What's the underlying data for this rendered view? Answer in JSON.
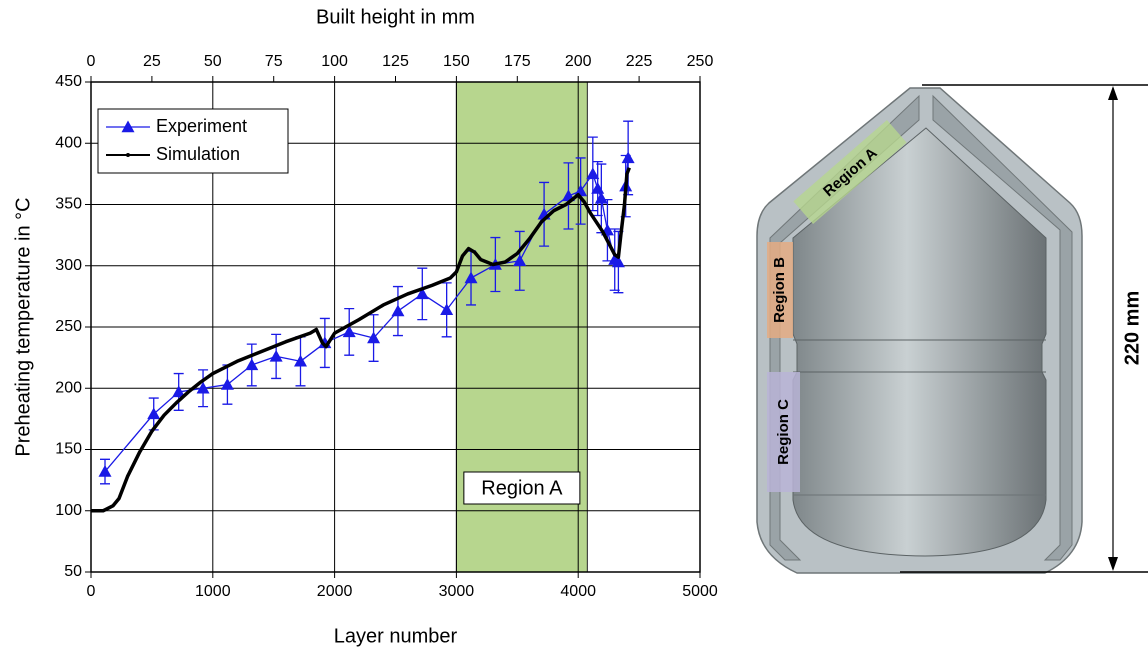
{
  "chart_data": {
    "type": "line",
    "xlabel": "Layer number",
    "ylabel": "Preheating temperature in °C",
    "x2label": "Built height in mm",
    "xlim": [
      0,
      5000
    ],
    "xticks": [
      0,
      1000,
      2000,
      3000,
      4000,
      5000
    ],
    "x2lim": [
      0,
      250
    ],
    "x2ticks": [
      0,
      25,
      50,
      75,
      100,
      125,
      150,
      175,
      200,
      225,
      250
    ],
    "ylim": [
      50,
      450
    ],
    "yticks": [
      50,
      100,
      150,
      200,
      250,
      300,
      350,
      400,
      450
    ],
    "grid": true,
    "legend": "upper left",
    "shaded_region": {
      "x": [
        3000,
        4075
      ],
      "label": "Region A",
      "color": "#b7d68e"
    },
    "series": [
      {
        "name": "Experiment",
        "color": "#1a1ae6",
        "marker": "triangle",
        "x": [
          115,
          515,
          720,
          920,
          1120,
          1320,
          1520,
          1720,
          1920,
          2120,
          2320,
          2520,
          2720,
          2920,
          3120,
          3320,
          3520,
          3720,
          3920,
          4020,
          4120,
          4160,
          4190,
          4240,
          4300,
          4330,
          4390,
          4410
        ],
        "values": [
          132,
          179,
          197,
          200,
          203,
          219,
          226,
          222,
          237,
          246,
          241,
          263,
          277,
          264,
          290,
          301,
          304,
          342,
          357,
          361,
          375,
          363,
          355,
          329,
          305,
          303,
          365,
          388
        ],
        "errors": [
          10,
          13,
          15,
          15,
          16,
          17,
          18,
          20,
          20,
          19,
          19,
          20,
          21,
          22,
          22,
          22,
          24,
          26,
          27,
          27,
          30,
          22,
          28,
          25,
          25,
          25,
          25,
          30
        ]
      },
      {
        "name": "Simulation",
        "color": "#000000",
        "marker": "none",
        "x": [
          0,
          100,
          180,
          230,
          300,
          400,
          500,
          600,
          700,
          800,
          900,
          1000,
          1200,
          1400,
          1600,
          1800,
          1850,
          1900,
          1930,
          2000,
          2200,
          2400,
          2600,
          2800,
          2950,
          3000,
          3050,
          3100,
          3150,
          3200,
          3300,
          3400,
          3500,
          3600,
          3700,
          3800,
          3900,
          4000,
          4050,
          4100,
          4200,
          4300,
          4330,
          4350,
          4380,
          4400,
          4420
        ],
        "values": [
          100,
          100,
          104,
          110,
          128,
          148,
          165,
          178,
          188,
          197,
          205,
          212,
          222,
          230,
          238,
          245,
          248,
          237,
          234,
          245,
          256,
          268,
          277,
          284,
          290,
          295,
          308,
          314,
          311,
          305,
          301,
          303,
          310,
          322,
          336,
          345,
          350,
          358,
          352,
          343,
          328,
          309,
          307,
          325,
          350,
          375,
          380
        ]
      }
    ]
  },
  "diagram": {
    "labels": [
      "Region A",
      "Region B",
      "Region C"
    ],
    "dimension": "220 mm"
  }
}
